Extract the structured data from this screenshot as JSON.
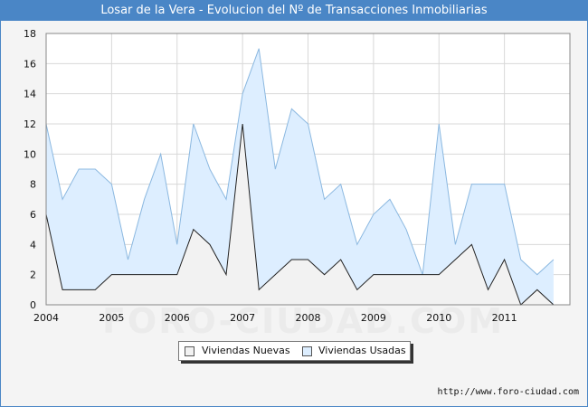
{
  "title": "Losar de la Vera - Evolucion del Nº de Transacciones Inmobiliarias",
  "source": "http://www.foro-ciudad.com",
  "watermark": "FORO-CIUDAD.COM",
  "colors": {
    "header": "#4a86c6",
    "nuevas_fill": "#f2f2f2",
    "usadas_fill": "#ddeeff",
    "usadas_line": "#8bb8e0"
  },
  "chart_data": {
    "type": "area",
    "x_tick_labels": [
      "2004",
      "2005",
      "2006",
      "2007",
      "2008",
      "2009",
      "2010",
      "2011"
    ],
    "y_tick_labels": [
      "0",
      "2",
      "4",
      "6",
      "8",
      "10",
      "12",
      "14",
      "16",
      "18"
    ],
    "ylim": [
      0,
      18
    ],
    "grid": true,
    "legend_position": "bottom",
    "x": [
      "2004T1",
      "2004T2",
      "2004T3",
      "2004T4",
      "2005T1",
      "2005T2",
      "2005T3",
      "2005T4",
      "2006T1",
      "2006T2",
      "2006T3",
      "2006T4",
      "2007T1",
      "2007T2",
      "2007T3",
      "2007T4",
      "2008T1",
      "2008T2",
      "2008T3",
      "2008T4",
      "2009T1",
      "2009T2",
      "2009T3",
      "2009T4",
      "2010T1",
      "2010T2",
      "2010T3",
      "2010T4",
      "2011T1",
      "2011T2",
      "2011T3",
      "2011T4"
    ],
    "series": [
      {
        "name": "Viviendas Nuevas",
        "values": [
          6,
          1,
          1,
          1,
          2,
          2,
          2,
          2,
          2,
          5,
          4,
          2,
          12,
          1,
          2,
          3,
          3,
          2,
          3,
          1,
          2,
          2,
          2,
          2,
          2,
          3,
          4,
          1,
          3,
          0,
          1,
          0
        ]
      },
      {
        "name": "Viviendas Usadas",
        "values": [
          6,
          6,
          8,
          8,
          6,
          1,
          5,
          8,
          2,
          7,
          5,
          5,
          2,
          16,
          7,
          10,
          9,
          5,
          5,
          3,
          4,
          5,
          3,
          0,
          10,
          1,
          4,
          7,
          5,
          3,
          1,
          3
        ]
      }
    ]
  }
}
